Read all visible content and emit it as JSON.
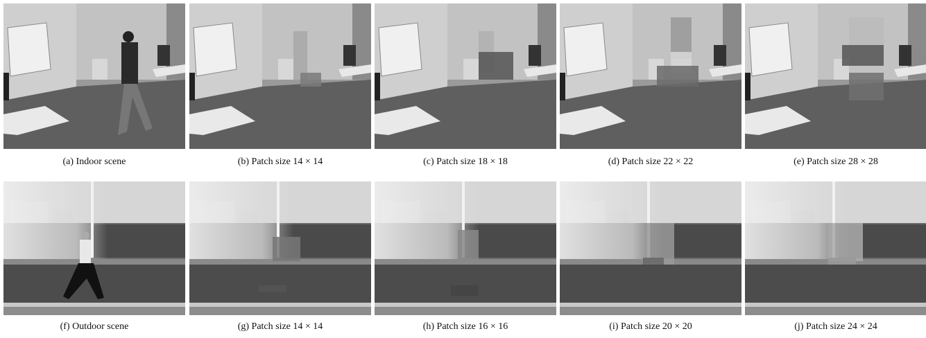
{
  "figure": {
    "rows": [
      {
        "panels": [
          {
            "caption": "(a) Indoor scene"
          },
          {
            "caption": "(b) Patch size 14 × 14"
          },
          {
            "caption": "(c) Patch size 18 × 18"
          },
          {
            "caption": "(d) Patch size 22 × 22"
          },
          {
            "caption": "(e) Patch size 28 × 28"
          }
        ]
      },
      {
        "panels": [
          {
            "caption": "(f) Outdoor scene"
          },
          {
            "caption": "(g) Patch size 14 × 14"
          },
          {
            "caption": "(h) Patch size 16 × 16"
          },
          {
            "caption": "(i) Patch size 20 × 20"
          },
          {
            "caption": "(j) Patch size 24 × 24"
          }
        ]
      }
    ]
  }
}
